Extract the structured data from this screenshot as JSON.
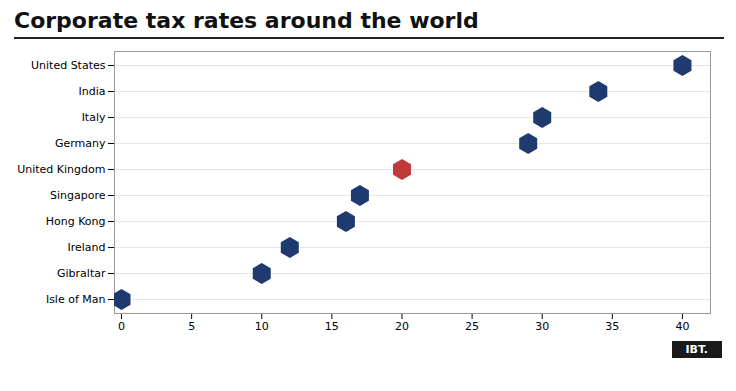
{
  "chart_data": {
    "type": "dot",
    "title": "Corporate tax rates around the world",
    "categories": [
      "United States",
      "India",
      "Italy",
      "Germany",
      "United Kingdom",
      "Singapore",
      "Hong Kong",
      "Ireland",
      "Gibraltar",
      "Isle of Man"
    ],
    "values": [
      40,
      34,
      30,
      29,
      20,
      17,
      16,
      12,
      10,
      0
    ],
    "colors": [
      "#1e3a6e",
      "#1e3a6e",
      "#1e3a6e",
      "#1e3a6e",
      "#c0393b",
      "#1e3a6e",
      "#1e3a6e",
      "#1e3a6e",
      "#1e3a6e",
      "#1e3a6e"
    ],
    "xlim": [
      -0.5,
      42
    ],
    "xticks": [
      0,
      5,
      10,
      15,
      20,
      25,
      30,
      35,
      40
    ],
    "marker": "hexagon",
    "grid": true,
    "annotations": [
      "IBT."
    ]
  }
}
